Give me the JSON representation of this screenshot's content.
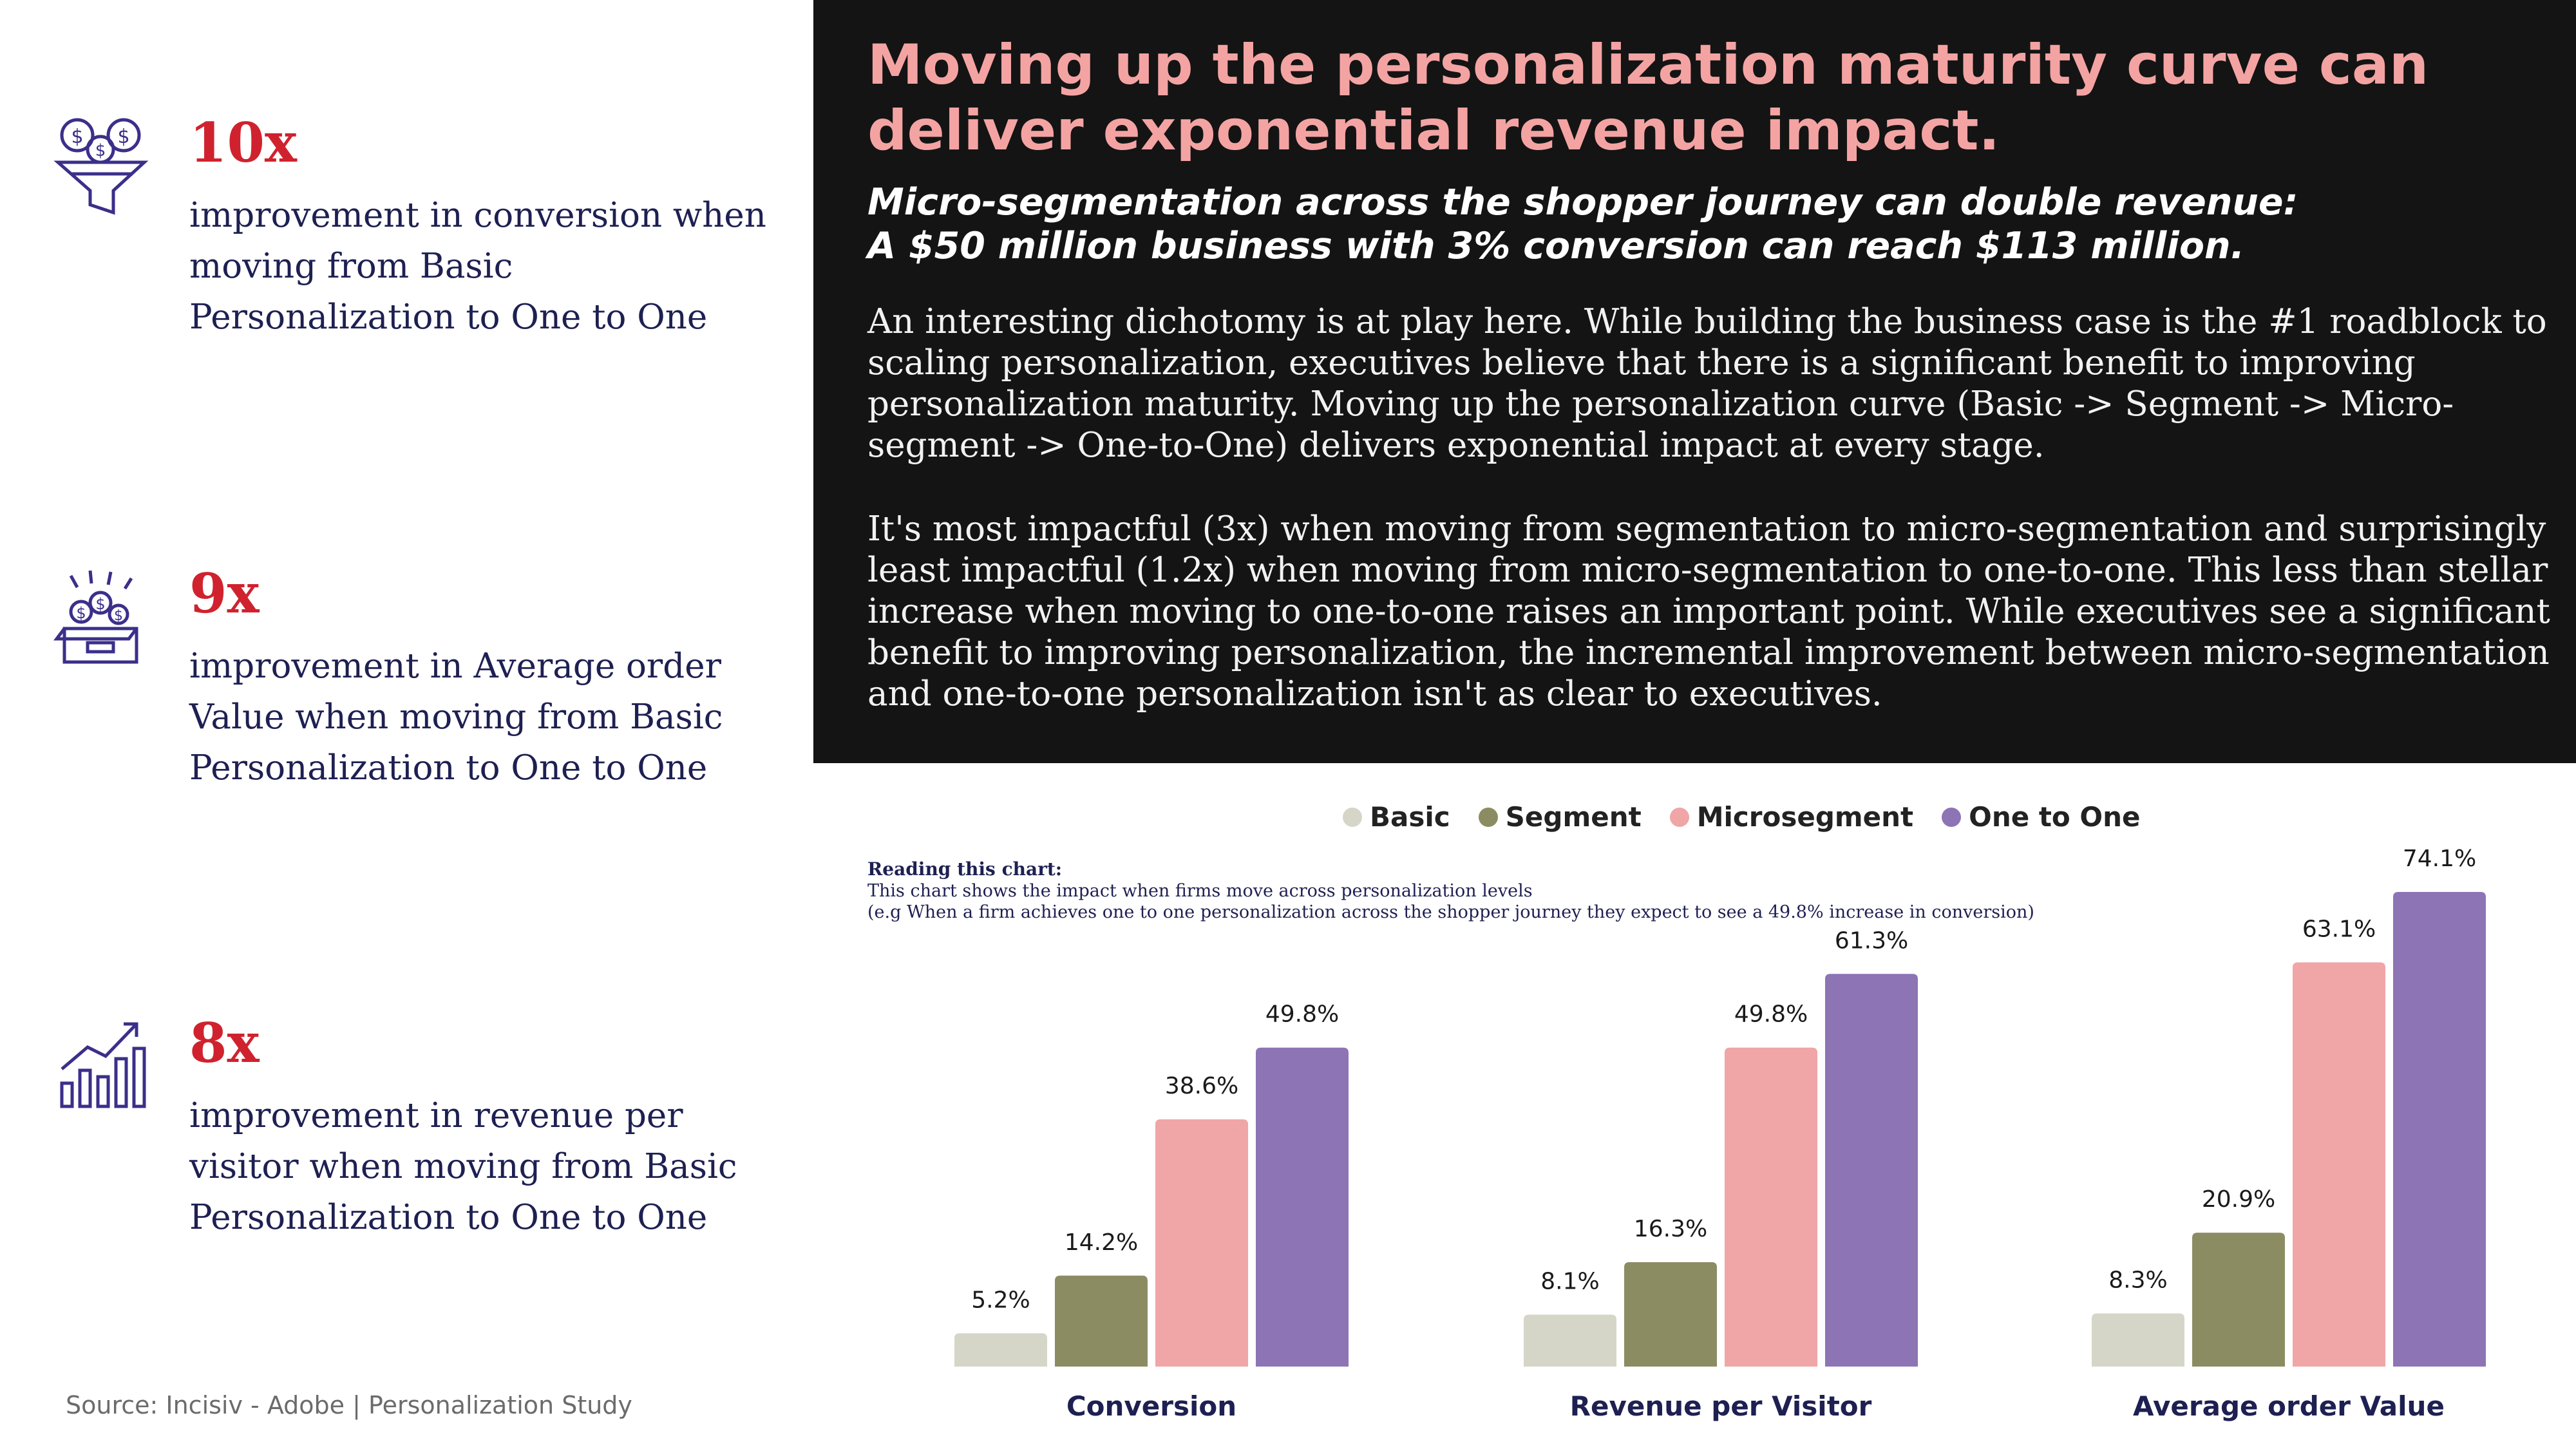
{
  "stats": [
    {
      "value": "10x",
      "description": "improvement in conversion when moving from Basic Personalization to One to One",
      "icon": "money-funnel-icon"
    },
    {
      "value": "9x",
      "description": "improvement in Average order Value when moving from Basic Personalization to One to One",
      "icon": "money-box-icon"
    },
    {
      "value": "8x",
      "description": "improvement in revenue per visitor when moving from Basic Personalization to One to One",
      "icon": "growth-chart-icon"
    }
  ],
  "headline": "Moving up the personalization maturity curve can deliver exponential revenue impact.",
  "subhead_line1": "Micro-segmentation across the shopper journey can double revenue:",
  "subhead_line2": "A $50 million business with 3% conversion can reach $113 million.",
  "paragraph1": "An interesting dichotomy is at play here. While building the business case is the #1 roadblock to scaling personalization, executives believe that there is a significant benefit to improving personalization maturity. Moving up the personalization curve (Basic -> Segment -> Micro-segment -> One-to-One) delivers exponential impact at every stage.",
  "paragraph2": "It's most impactful (3x) when moving from segmentation to micro-segmentation and surprisingly least impactful (1.2x) when moving from micro-segmentation to one-to-one. This less than stellar increase when moving to one-to-one raises an important point. While executives see a significant benefit to improving personalization, the incremental improvement between micro-segmentation and one-to-one personalization isn't as clear to executives.",
  "reading": {
    "title": "Reading this chart:",
    "line1": "This chart shows the impact when firms move across personalization levels",
    "line2": "(e.g When a firm achieves one to one personalization across the shopper journey they expect to see a 49.8% increase in conversion)"
  },
  "source": "Source: Incisiv - Adobe | Personalization Study",
  "colors": {
    "accent": "#d0222e",
    "navy": "#1e2052",
    "headline": "#f4a3a3",
    "panel": "#141414"
  },
  "chart_data": {
    "type": "bar",
    "categories": [
      "Conversion",
      "Revenue per Visitor",
      "Average order Value"
    ],
    "series": [
      {
        "name": "Basic",
        "color": "#d6d6c8",
        "values": [
          5.2,
          8.1,
          8.3
        ]
      },
      {
        "name": "Segment",
        "color": "#8c8c63",
        "values": [
          14.2,
          16.3,
          20.9
        ]
      },
      {
        "name": "Microsegment",
        "color": "#f0a5a7",
        "values": [
          38.6,
          49.8,
          63.1
        ]
      },
      {
        "name": "One to One",
        "color": "#8d74b5",
        "values": [
          49.8,
          61.3,
          74.1
        ]
      }
    ],
    "value_suffix": "%",
    "ylim": [
      0,
      80
    ],
    "legend": "top",
    "grid": false
  }
}
